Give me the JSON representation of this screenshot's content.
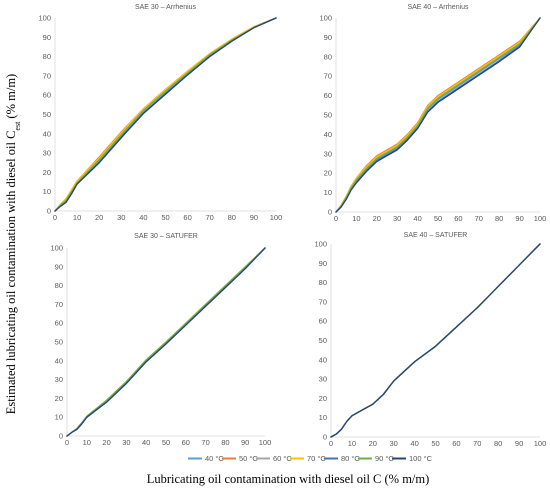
{
  "figure": {
    "ylabel": "Estimated lubricating oil contamination with diesel oil C",
    "ylabel_sub": "est",
    "ylabel_unit": " (% m/m)",
    "xlabel": "Lubricating oil contamination with diesel oil C (% m/m)"
  },
  "colors": {
    "40 °C": "#5b9bd5",
    "50 °C": "#ed7d31",
    "60 °C": "#a5a5a5",
    "70 °C": "#ffc000",
    "80 °C": "#4472c4",
    "90 °C": "#70ad47",
    "100 °C": "#264478"
  },
  "chart_data": [
    {
      "type": "line",
      "title": "SAE 30 – Arrhenius",
      "xlim": [
        0,
        100
      ],
      "ylim": [
        0,
        100
      ],
      "xticks": [
        0,
        10,
        20,
        30,
        40,
        50,
        60,
        70,
        80,
        90,
        100
      ],
      "yticks": [
        0,
        10,
        20,
        30,
        40,
        50,
        60,
        70,
        80,
        90,
        100
      ],
      "x": [
        0,
        2.5,
        5,
        7.5,
        10,
        20,
        30,
        40,
        50,
        60,
        70,
        80,
        90,
        100
      ],
      "series": [
        {
          "name": "40 °C",
          "values": [
            0,
            3,
            5,
            9,
            14,
            25,
            38,
            51,
            61,
            71,
            80,
            88,
            95,
            100
          ]
        },
        {
          "name": "50 °C",
          "values": [
            0,
            3.5,
            6,
            11,
            15.5,
            28,
            41,
            53,
            63,
            72.5,
            81.5,
            89,
            95.5,
            100
          ]
        },
        {
          "name": "60 °C",
          "values": [
            0,
            3.5,
            6,
            10.5,
            15,
            27,
            40,
            52.5,
            62.5,
            72,
            81,
            88.5,
            95.5,
            100
          ]
        },
        {
          "name": "70 °C",
          "values": [
            0,
            3.5,
            6.5,
            11,
            15.5,
            27.5,
            40.5,
            53,
            63,
            72.5,
            81.5,
            89,
            95.5,
            100
          ]
        },
        {
          "name": "80 °C",
          "values": [
            0,
            2.5,
            4.5,
            9,
            14,
            25.5,
            38.5,
            51,
            61,
            71,
            80.5,
            88.5,
            95,
            100
          ]
        },
        {
          "name": "90 °C",
          "values": [
            0,
            3,
            5.5,
            10,
            14.5,
            26.5,
            39.5,
            52,
            62,
            71.5,
            81,
            88.5,
            95,
            100
          ]
        },
        {
          "name": "100 °C",
          "values": [
            0,
            2.5,
            4.5,
            9,
            14,
            25,
            38,
            50.5,
            60.5,
            70.5,
            80,
            88,
            95,
            100
          ]
        }
      ]
    },
    {
      "type": "line",
      "title": "SAE 40 – Arrhenius",
      "xlim": [
        0,
        100
      ],
      "ylim": [
        0,
        100
      ],
      "xticks": [
        0,
        10,
        20,
        30,
        40,
        50,
        60,
        70,
        80,
        90,
        100
      ],
      "yticks": [
        0,
        10,
        20,
        30,
        40,
        50,
        60,
        70,
        80,
        90,
        100
      ],
      "x": [
        0,
        2.5,
        5,
        7.5,
        10,
        15,
        20,
        25,
        30,
        35,
        40,
        45,
        50,
        60,
        70,
        80,
        90,
        100
      ],
      "series": [
        {
          "name": "40 °C",
          "values": [
            0,
            3,
            7,
            12,
            16,
            22,
            27,
            30,
            33,
            38,
            44,
            53,
            58,
            65,
            72,
            79,
            86,
            100
          ]
        },
        {
          "name": "50 °C",
          "values": [
            0,
            3.5,
            8,
            13.5,
            17.5,
            24,
            29,
            32,
            35,
            40,
            46,
            55,
            60,
            67,
            74,
            81,
            88,
            100
          ]
        },
        {
          "name": "60 °C",
          "values": [
            0,
            3,
            7.5,
            13,
            17,
            23,
            28,
            31,
            34,
            39,
            45,
            54,
            59,
            66,
            73,
            80,
            87,
            100
          ]
        },
        {
          "name": "70 °C",
          "values": [
            0,
            3.5,
            8,
            13.5,
            17.5,
            23.5,
            28.5,
            31.5,
            34.5,
            39.5,
            45.5,
            54.5,
            59.5,
            66.5,
            73.5,
            80.5,
            87.5,
            100
          ]
        },
        {
          "name": "80 °C",
          "values": [
            0,
            3,
            7,
            12,
            15.5,
            21.5,
            26.5,
            29.5,
            32.5,
            37.5,
            43.5,
            52,
            57,
            64,
            71,
            78,
            85.5,
            100
          ]
        },
        {
          "name": "90 °C",
          "values": [
            0,
            3,
            7.5,
            12.5,
            16.5,
            22.5,
            27.5,
            30.5,
            33.5,
            38.5,
            44.5,
            53.5,
            58.5,
            65.5,
            72.5,
            79.5,
            86.5,
            100
          ]
        },
        {
          "name": "100 °C",
          "values": [
            0,
            2.5,
            6.5,
            11.5,
            15,
            21,
            26,
            29,
            32,
            37,
            43,
            51.5,
            56.5,
            63.5,
            70.5,
            77.5,
            85,
            100
          ]
        }
      ]
    },
    {
      "type": "line",
      "title": "SAE 30 – SATUFER",
      "xlim": [
        0,
        100
      ],
      "ylim": [
        0,
        100
      ],
      "xticks": [
        0,
        10,
        20,
        30,
        40,
        50,
        60,
        70,
        80,
        90,
        100
      ],
      "yticks": [
        0,
        10,
        20,
        30,
        40,
        50,
        60,
        70,
        80,
        90,
        100
      ],
      "x": [
        0,
        2.5,
        5,
        7.5,
        10,
        20,
        30,
        40,
        50,
        60,
        70,
        80,
        90,
        100
      ],
      "series": [
        {
          "name": "40 °C",
          "values": [
            0,
            2,
            4,
            7,
            10,
            18.5,
            28.5,
            40,
            49.5,
            59.5,
            69.5,
            79.5,
            89.5,
            100
          ]
        },
        {
          "name": "50 °C",
          "values": [
            0,
            2,
            4,
            7,
            10,
            18.5,
            28.5,
            40,
            49.5,
            59.5,
            69.5,
            79.5,
            89.5,
            100
          ]
        },
        {
          "name": "60 °C",
          "values": [
            0,
            2,
            4,
            7,
            10,
            18.5,
            28.5,
            40,
            49.5,
            59.5,
            69.5,
            79.5,
            89.5,
            100
          ]
        },
        {
          "name": "70 °C",
          "values": [
            0,
            2,
            4,
            7,
            10.5,
            19,
            29,
            40.5,
            50,
            60,
            70,
            80,
            90,
            100
          ]
        },
        {
          "name": "80 °C",
          "values": [
            0,
            2,
            3.5,
            6.5,
            10,
            18,
            28,
            39.5,
            49,
            59,
            69,
            79,
            89,
            100
          ]
        },
        {
          "name": "90 °C",
          "values": [
            0,
            2,
            4,
            7,
            10.5,
            19,
            29,
            40.5,
            50,
            60,
            70,
            80,
            90,
            100
          ]
        },
        {
          "name": "100 °C",
          "values": [
            0,
            2,
            3.5,
            6.5,
            10,
            18,
            28,
            39.5,
            49,
            59,
            69,
            79,
            89,
            100
          ]
        }
      ]
    },
    {
      "type": "line",
      "title": "SAE 40 – SATUFER",
      "xlim": [
        0,
        100
      ],
      "ylim": [
        0,
        100
      ],
      "xticks": [
        0,
        10,
        20,
        30,
        40,
        50,
        60,
        70,
        80,
        90,
        100
      ],
      "yticks": [
        0,
        10,
        20,
        30,
        40,
        50,
        60,
        70,
        80,
        90,
        100
      ],
      "x": [
        0,
        2.5,
        5,
        7.5,
        10,
        15,
        20,
        25,
        30,
        40,
        50,
        60,
        70,
        80,
        90,
        100
      ],
      "series": [
        {
          "name": "40 °C",
          "values": [
            0,
            1.5,
            4,
            8,
            11,
            14,
            17,
            22,
            29,
            39,
            47,
            57,
            67,
            78,
            89,
            100
          ]
        },
        {
          "name": "50 °C",
          "values": [
            0,
            1.5,
            4,
            8,
            11,
            14,
            17,
            22,
            29,
            39,
            47,
            57,
            67,
            78,
            89,
            100
          ]
        },
        {
          "name": "60 °C",
          "values": [
            0,
            1.5,
            4,
            8,
            11,
            14,
            17,
            22,
            29,
            39,
            47,
            57,
            67,
            78,
            89,
            100
          ]
        },
        {
          "name": "70 °C",
          "values": [
            0,
            1.5,
            4,
            8,
            11,
            14,
            17,
            22,
            29,
            39,
            47,
            57,
            67,
            78,
            89,
            100
          ]
        },
        {
          "name": "80 °C",
          "values": [
            0,
            1.5,
            4,
            8,
            11,
            14,
            17,
            22,
            29,
            39,
            47,
            57,
            67,
            78,
            89,
            100
          ]
        },
        {
          "name": "90 °C",
          "values": [
            0,
            1.5,
            4,
            8,
            11,
            14,
            17,
            22,
            29,
            39,
            47,
            57,
            67,
            78,
            89,
            100
          ]
        },
        {
          "name": "100 °C",
          "values": [
            0,
            1.5,
            4,
            8,
            11,
            14,
            17,
            22,
            29,
            39,
            47,
            57,
            67,
            78,
            89,
            100
          ]
        }
      ]
    }
  ],
  "legend": [
    "40 °C",
    "50 °C",
    "60 °C",
    "70 °C",
    "80 °C",
    "90 °C",
    "100 °C"
  ]
}
